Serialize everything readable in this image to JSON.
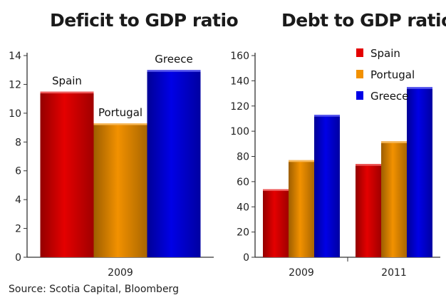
{
  "source": "Source: Scotia Capital, Bloomberg",
  "colors": {
    "Spain": "#e40000",
    "Portugal": "#f29100",
    "Greece": "#0000e6"
  },
  "chart_data": [
    {
      "type": "bar",
      "title": "Deficit to GDP ratio",
      "categories": [
        "2009"
      ],
      "series": [
        {
          "name": "Spain",
          "values": [
            11.5
          ]
        },
        {
          "name": "Portugal",
          "values": [
            9.3
          ]
        },
        {
          "name": "Greece",
          "values": [
            13.0
          ]
        }
      ],
      "ylim": [
        0,
        14
      ],
      "yticks": [
        "0",
        "2",
        "4",
        "6",
        "8",
        "10",
        "12",
        "14"
      ],
      "data_labels": true,
      "legend": "none"
    },
    {
      "type": "bar",
      "title": "Debt to GDP ratio",
      "categories": [
        "2009",
        "2011"
      ],
      "series": [
        {
          "name": "Spain",
          "values": [
            54,
            74
          ]
        },
        {
          "name": "Portugal",
          "values": [
            77,
            92
          ]
        },
        {
          "name": "Greece",
          "values": [
            113,
            135
          ]
        }
      ],
      "ylim": [
        0,
        160
      ],
      "yticks": [
        "0",
        "20",
        "40",
        "60",
        "80",
        "100",
        "120",
        "140",
        "160"
      ],
      "legend": "top-right"
    }
  ]
}
